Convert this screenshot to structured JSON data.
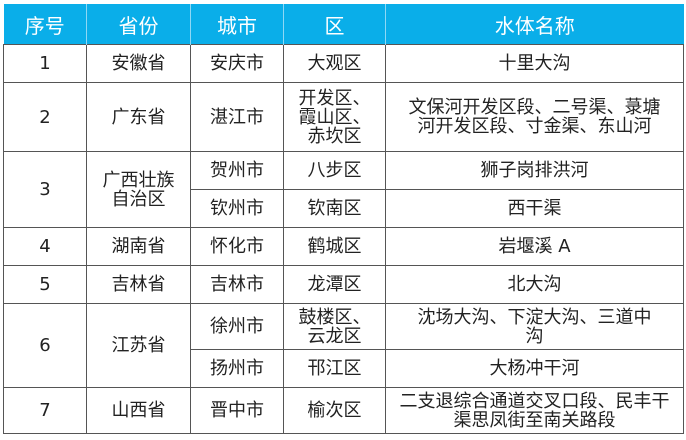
{
  "headers": [
    "序号",
    "省份",
    "城市",
    "区",
    "水体名称"
  ],
  "rows": [
    {
      "no": "1",
      "province": "安徽省",
      "city": "安庆市",
      "district": "大观区",
      "water": "十里大沟"
    },
    {
      "no": "2",
      "province": "广东省",
      "city": "湛江市",
      "district": "开发区、霞山区、赤坎区",
      "water": "文保河开发区段、二号渠、菉塘河开发区段、寸金渠、东山河"
    },
    {
      "no": "3",
      "province": "广西壮族自治区",
      "entries": [
        {
          "city": "贺州市",
          "district": "八步区",
          "water": "狮子岗排洪河"
        },
        {
          "city": "钦州市",
          "district": "钦南区",
          "water": "西干渠"
        }
      ]
    },
    {
      "no": "4",
      "province": "湖南省",
      "city": "怀化市",
      "district": "鹤城区",
      "water": "岩堰溪 A"
    },
    {
      "no": "5",
      "province": "吉林省",
      "city": "吉林市",
      "district": "龙潭区",
      "water": "北大沟"
    },
    {
      "no": "6",
      "province": "江苏省",
      "entries": [
        {
          "city": "徐州市",
          "district": "鼓楼区、云龙区",
          "water": "沈场大沟、下淀大沟、三道中沟"
        },
        {
          "city": "扬州市",
          "district": "邗江区",
          "water": "大杨冲干河"
        }
      ]
    },
    {
      "no": "7",
      "province": "山西省",
      "city": "晋中市",
      "district": "榆次区",
      "water": "二支退综合通道交叉口段、民丰干渠思凤街至南关路段"
    }
  ],
  "colors": {
    "header_bg": "#0aaee9",
    "header_text": "#ffffff",
    "border": "#555555"
  }
}
